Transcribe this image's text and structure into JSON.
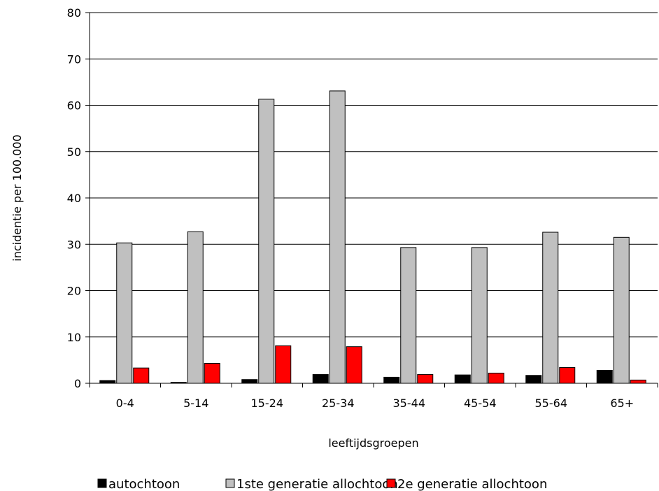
{
  "chart_data": {
    "type": "bar",
    "title": "",
    "xlabel": "leeftijdsgroepen",
    "ylabel": "incidentie per 100.000",
    "ylim": [
      0,
      80
    ],
    "yticks": [
      0,
      10,
      20,
      30,
      40,
      50,
      60,
      70,
      80
    ],
    "grid": true,
    "legend_position": "bottom",
    "categories": [
      "0-4",
      "5-14",
      "15-24",
      "25-34",
      "35-44",
      "45-54",
      "55-64",
      "65+"
    ],
    "series": [
      {
        "name": "autochtoon",
        "color": "#000000",
        "values": [
          0.6,
          0.2,
          0.8,
          1.9,
          1.3,
          1.8,
          1.7,
          2.8
        ]
      },
      {
        "name": "1ste generatie allochtoon",
        "color": "#c0c0c0",
        "values": [
          30.3,
          32.7,
          61.3,
          63.1,
          29.3,
          29.3,
          32.6,
          31.5
        ]
      },
      {
        "name": "2e generatie allochtoon",
        "color": "#ff0000",
        "values": [
          3.3,
          4.3,
          8.1,
          7.9,
          1.9,
          2.2,
          3.4,
          0.7
        ]
      }
    ]
  }
}
